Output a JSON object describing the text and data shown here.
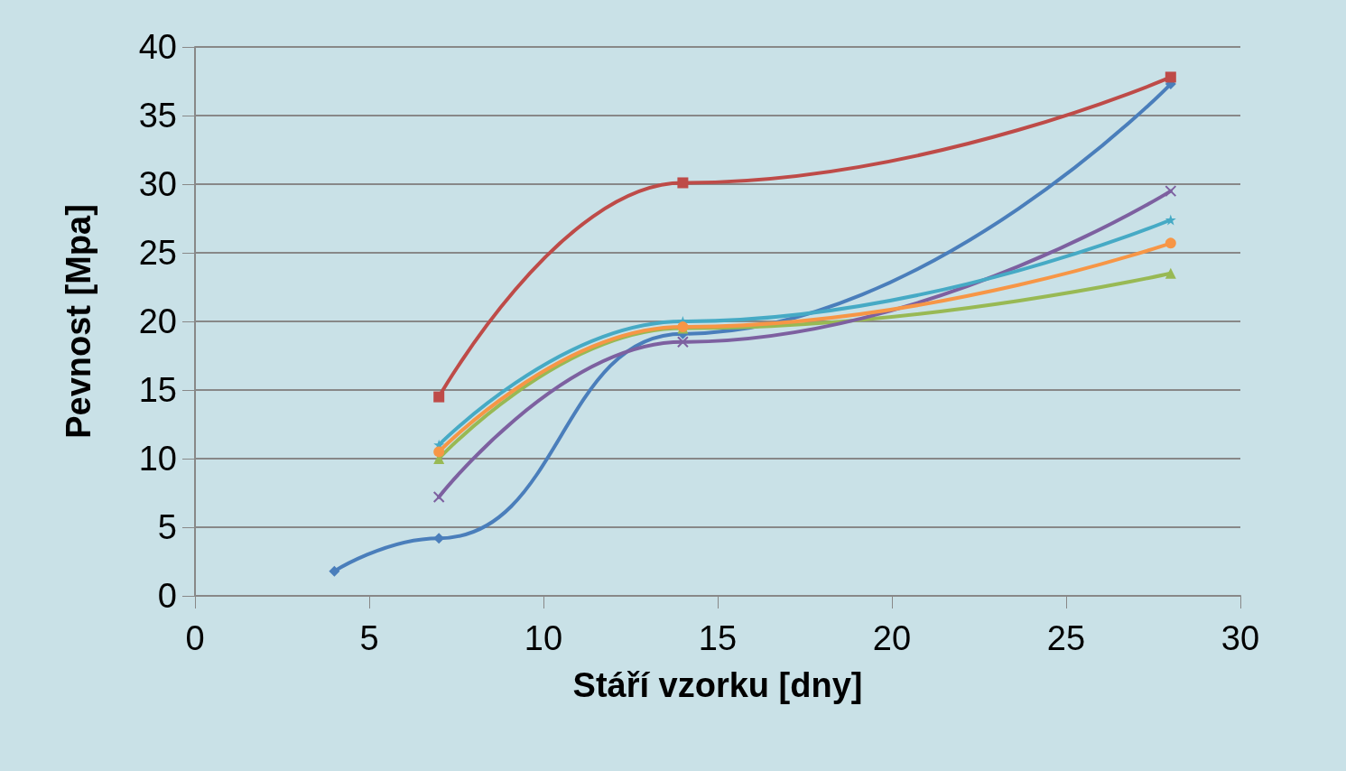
{
  "chart_data": {
    "type": "line",
    "xlabel": "Stáří vzorku [dny]",
    "ylabel": "Pevnost [Mpa]",
    "xlim": [
      0,
      30
    ],
    "xticks": [
      0,
      5,
      10,
      15,
      20,
      25,
      30
    ],
    "ylim": [
      0,
      40
    ],
    "yticks": [
      0,
      5,
      10,
      15,
      20,
      25,
      30,
      35,
      40
    ],
    "grid": "y",
    "series": [
      {
        "color": "#4a7ebb",
        "marker": "diamond",
        "x": [
          4,
          7,
          14,
          28
        ],
        "values": [
          1.8,
          4.2,
          19.1,
          37.3
        ]
      },
      {
        "color": "#be4b48",
        "marker": "square",
        "x": [
          7,
          14,
          28
        ],
        "values": [
          14.5,
          30.1,
          37.8
        ]
      },
      {
        "color": "#98b954",
        "marker": "triangle",
        "x": [
          7,
          14,
          28
        ],
        "values": [
          10,
          19.5,
          23.5
        ]
      },
      {
        "color": "#7d60a0",
        "marker": "cross",
        "x": [
          7,
          14,
          28
        ],
        "values": [
          7.2,
          18.5,
          29.5
        ]
      },
      {
        "color": "#46aac5",
        "marker": "star",
        "x": [
          7,
          14,
          28
        ],
        "values": [
          11,
          20,
          27.4
        ]
      },
      {
        "color": "#f79646",
        "marker": "circle",
        "x": [
          7,
          14,
          28
        ],
        "values": [
          10.5,
          19.6,
          25.7
        ]
      }
    ]
  }
}
